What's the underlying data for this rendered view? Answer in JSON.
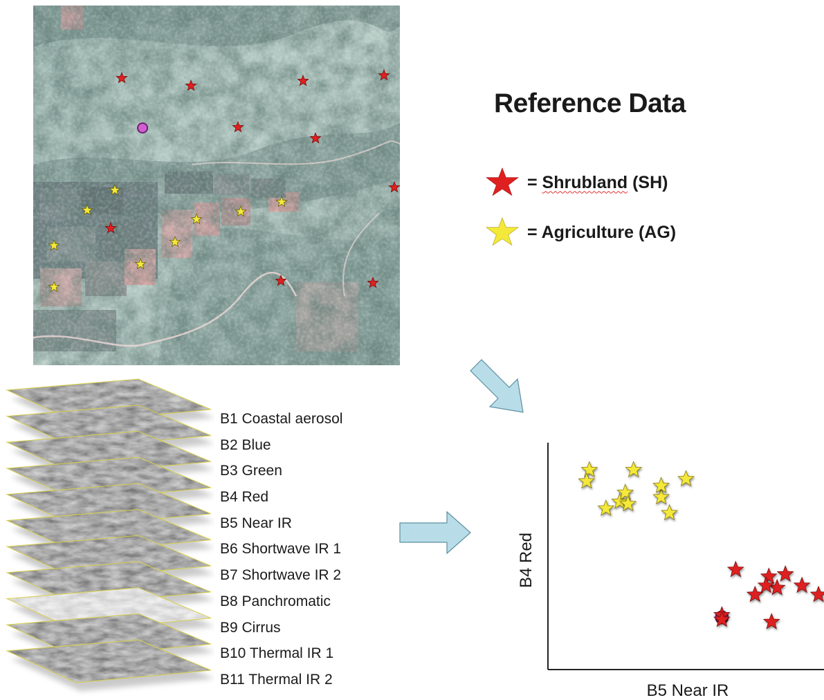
{
  "legend": {
    "title": "Reference Data",
    "items": [
      {
        "label": "= Shrubland (SH)",
        "prefix": "= ",
        "name": "Shrubland",
        "code": "(SH)",
        "color": "#e02020",
        "icon": "red-star-icon"
      },
      {
        "label": "= Agriculture (AG)",
        "prefix": "= ",
        "name": "Agriculture",
        "code": "(AG)",
        "color": "#f4e83a",
        "icon": "yellow-star-icon"
      }
    ]
  },
  "bands": [
    "B1 Coastal aerosol",
    "B2 Blue",
    "B3 Green",
    "B4 Red",
    "B5 Near IR",
    "B6 Shortwave IR 1",
    "B7 Shortwave IR 2",
    "B8 Panchromatic",
    "B9 Cirrus",
    "B10 Thermal IR 1",
    "B11 Thermal IR 2"
  ],
  "chart_data": {
    "type": "scatter",
    "xlabel": "B5 Near IR",
    "ylabel": "B4 Red",
    "xlim": [
      0,
      1
    ],
    "ylim": [
      0,
      1
    ],
    "series": [
      {
        "name": "Agriculture (AG)",
        "color": "#f4e83a",
        "x": [
          0.15,
          0.14,
          0.31,
          0.26,
          0.5,
          0.41,
          0.28,
          0.44,
          0.21,
          0.29,
          0.41
        ],
        "y": [
          0.88,
          0.83,
          0.88,
          0.74,
          0.84,
          0.76,
          0.78,
          0.69,
          0.71,
          0.73,
          0.81
        ]
      },
      {
        "name": "Shrubland (SH)",
        "color": "#e02020",
        "x": [
          0.68,
          0.8,
          0.86,
          0.92,
          0.98,
          0.75,
          0.83,
          0.79,
          0.63,
          0.81,
          0.63
        ],
        "y": [
          0.44,
          0.41,
          0.42,
          0.37,
          0.33,
          0.33,
          0.36,
          0.37,
          0.24,
          0.21,
          0.22
        ]
      }
    ],
    "annotations": [
      {
        "x": 0.63,
        "y": 0.23,
        "marker": "circle",
        "color": "#c050c0"
      }
    ]
  }
}
